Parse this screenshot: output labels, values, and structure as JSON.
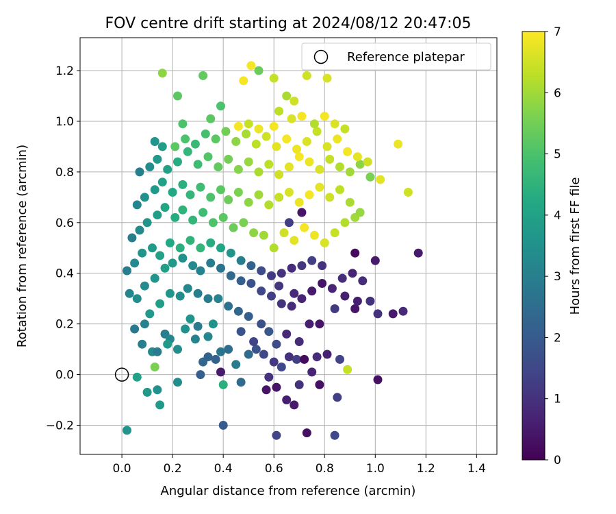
{
  "chart_data": {
    "type": "scatter",
    "title": "FOV centre drift starting at 2024/08/12 20:47:05",
    "xlabel": "Angular distance from reference (arcmin)",
    "ylabel": "Rotation from reference (arcmin)",
    "xlim": [
      -0.165,
      1.48
    ],
    "ylim": [
      -0.315,
      1.33
    ],
    "xticks": [
      "0.0",
      "0.2",
      "0.4",
      "0.6",
      "0.8",
      "1.0",
      "1.2",
      "1.4"
    ],
    "xtick_values": [
      0.0,
      0.2,
      0.4,
      0.6,
      0.8,
      1.0,
      1.2,
      1.4
    ],
    "yticks": [
      "−0.2",
      "0.0",
      "0.2",
      "0.4",
      "0.6",
      "0.8",
      "1.0",
      "1.2"
    ],
    "ytick_values": [
      -0.2,
      0.0,
      0.2,
      0.4,
      0.6,
      0.8,
      1.0,
      1.2
    ],
    "grid": true,
    "legend": {
      "placement": "top-right",
      "entries": [
        "Reference platepar"
      ]
    },
    "reference_point": {
      "x": 0.0,
      "y": 0.0,
      "name": "Reference platepar"
    },
    "colorbar": {
      "label": "Hours from first FF file",
      "range": [
        0,
        7
      ],
      "ticks": [
        "0",
        "1",
        "2",
        "3",
        "4",
        "5",
        "6",
        "7"
      ],
      "tick_values": [
        0,
        1,
        2,
        3,
        4,
        5,
        6,
        7
      ],
      "colormap": [
        "#440154",
        "#482475",
        "#414487",
        "#355f8d",
        "#2a788e",
        "#21918c",
        "#22a884",
        "#44bf70",
        "#7ad151",
        "#bddf26",
        "#fde725"
      ]
    },
    "points": [
      [
        0.02,
        -0.22,
        3.6
      ],
      [
        0.15,
        -0.12,
        3.8
      ],
      [
        0.4,
        -0.2,
        2.0
      ],
      [
        0.61,
        -0.24,
        1.4
      ],
      [
        0.73,
        -0.23,
        0.3
      ],
      [
        0.84,
        -0.24,
        1.5
      ],
      [
        0.1,
        -0.07,
        3.7
      ],
      [
        0.14,
        -0.06,
        3.5
      ],
      [
        0.06,
        -0.01,
        4.0
      ],
      [
        0.13,
        0.03,
        5.6
      ],
      [
        0.22,
        -0.03,
        3.4
      ],
      [
        0.31,
        0.0,
        2.1
      ],
      [
        0.39,
        0.01,
        0.5
      ],
      [
        0.4,
        -0.04,
        4.4
      ],
      [
        0.47,
        -0.03,
        2.4
      ],
      [
        0.57,
        -0.06,
        0.4
      ],
      [
        0.58,
        -0.01,
        1.0
      ],
      [
        0.61,
        -0.05,
        0.4
      ],
      [
        0.65,
        -0.1,
        0.6
      ],
      [
        0.68,
        -0.12,
        0.5
      ],
      [
        0.7,
        -0.04,
        1.0
      ],
      [
        0.75,
        0.01,
        0.7
      ],
      [
        0.78,
        -0.04,
        0.3
      ],
      [
        0.85,
        -0.09,
        1.3
      ],
      [
        0.89,
        0.02,
        6.4
      ],
      [
        1.01,
        -0.02,
        0.3
      ],
      [
        0.32,
        0.05,
        2.3
      ],
      [
        0.34,
        0.07,
        2.2
      ],
      [
        0.37,
        0.06,
        2.2
      ],
      [
        0.45,
        0.04,
        2.9
      ],
      [
        0.5,
        0.08,
        2.4
      ],
      [
        0.53,
        0.1,
        1.8
      ],
      [
        0.56,
        0.08,
        1.5
      ],
      [
        0.6,
        0.05,
        1.2
      ],
      [
        0.63,
        0.03,
        1.5
      ],
      [
        0.66,
        0.07,
        1.0
      ],
      [
        0.69,
        0.06,
        1.3
      ],
      [
        0.72,
        0.06,
        0.2
      ],
      [
        0.77,
        0.07,
        0.9
      ],
      [
        0.81,
        0.08,
        0.6
      ],
      [
        0.86,
        0.06,
        1.4
      ],
      [
        0.65,
        0.16,
        0.8
      ],
      [
        0.7,
        0.13,
        0.9
      ],
      [
        0.74,
        0.2,
        0.6
      ],
      [
        0.78,
        0.2,
        0.4
      ],
      [
        0.84,
        0.26,
        1.2
      ],
      [
        0.92,
        0.26,
        0.4
      ],
      [
        0.98,
        0.29,
        1.0
      ],
      [
        1.01,
        0.24,
        1.0
      ],
      [
        1.07,
        0.24,
        0.5
      ],
      [
        1.11,
        0.25,
        0.8
      ],
      [
        1.17,
        0.48,
        0.5
      ],
      [
        1.0,
        0.45,
        0.5
      ],
      [
        0.92,
        0.48,
        0.2
      ],
      [
        0.91,
        0.4,
        0.7
      ],
      [
        0.95,
        0.37,
        0.9
      ],
      [
        0.93,
        0.29,
        0.6
      ],
      [
        0.88,
        0.31,
        0.6
      ],
      [
        0.05,
        0.18,
        2.8
      ],
      [
        0.08,
        0.12,
        3.0
      ],
      [
        0.09,
        0.2,
        3.1
      ],
      [
        0.12,
        0.09,
        3.3
      ],
      [
        0.14,
        0.09,
        2.9
      ],
      [
        0.17,
        0.16,
        3.0
      ],
      [
        0.19,
        0.14,
        3.2
      ],
      [
        0.22,
        0.1,
        3.4
      ],
      [
        0.25,
        0.18,
        3.5
      ],
      [
        0.27,
        0.22,
        3.6
      ],
      [
        0.29,
        0.14,
        3.1
      ],
      [
        0.3,
        0.19,
        2.9
      ],
      [
        0.34,
        0.15,
        3.2
      ],
      [
        0.36,
        0.2,
        3.5
      ],
      [
        0.18,
        0.12,
        3.8
      ],
      [
        0.11,
        0.24,
        3.7
      ],
      [
        0.15,
        0.28,
        3.9
      ],
      [
        0.19,
        0.32,
        3.6
      ],
      [
        0.23,
        0.31,
        3.4
      ],
      [
        0.26,
        0.34,
        3.2
      ],
      [
        0.3,
        0.32,
        3.0
      ],
      [
        0.34,
        0.3,
        2.9
      ],
      [
        0.38,
        0.3,
        3.1
      ],
      [
        0.42,
        0.27,
        2.6
      ],
      [
        0.46,
        0.25,
        2.3
      ],
      [
        0.5,
        0.23,
        2.1
      ],
      [
        0.55,
        0.2,
        1.7
      ],
      [
        0.58,
        0.17,
        1.9
      ],
      [
        0.61,
        0.12,
        1.6
      ],
      [
        0.47,
        0.17,
        1.8
      ],
      [
        0.52,
        0.13,
        1.4
      ],
      [
        0.42,
        0.1,
        2.5
      ],
      [
        0.39,
        0.09,
        2.7
      ],
      [
        0.03,
        0.32,
        3.2
      ],
      [
        0.06,
        0.3,
        3.4
      ],
      [
        0.09,
        0.35,
        3.3
      ],
      [
        0.13,
        0.38,
        3.6
      ],
      [
        0.17,
        0.42,
        3.9
      ],
      [
        0.2,
        0.44,
        3.7
      ],
      [
        0.24,
        0.46,
        3.5
      ],
      [
        0.28,
        0.43,
        3.3
      ],
      [
        0.31,
        0.41,
        3.1
      ],
      [
        0.35,
        0.44,
        2.9
      ],
      [
        0.39,
        0.42,
        2.7
      ],
      [
        0.43,
        0.39,
        2.4
      ],
      [
        0.47,
        0.37,
        2.1
      ],
      [
        0.51,
        0.36,
        1.8
      ],
      [
        0.55,
        0.33,
        1.5
      ],
      [
        0.59,
        0.31,
        1.3
      ],
      [
        0.63,
        0.28,
        1.0
      ],
      [
        0.67,
        0.27,
        0.9
      ],
      [
        0.71,
        0.3,
        0.7
      ],
      [
        0.75,
        0.33,
        0.5
      ],
      [
        0.79,
        0.36,
        0.4
      ],
      [
        0.83,
        0.34,
        0.7
      ],
      [
        0.87,
        0.38,
        0.9
      ],
      [
        0.02,
        0.41,
        3.0
      ],
      [
        0.05,
        0.44,
        3.3
      ],
      [
        0.08,
        0.48,
        3.6
      ],
      [
        0.12,
        0.5,
        3.8
      ],
      [
        0.15,
        0.47,
        4.0
      ],
      [
        0.19,
        0.52,
        4.2
      ],
      [
        0.23,
        0.5,
        4.4
      ],
      [
        0.27,
        0.53,
        4.5
      ],
      [
        0.31,
        0.5,
        4.6
      ],
      [
        0.35,
        0.52,
        4.3
      ],
      [
        0.39,
        0.5,
        4.1
      ],
      [
        0.43,
        0.48,
        3.6
      ],
      [
        0.47,
        0.45,
        3.0
      ],
      [
        0.51,
        0.43,
        2.2
      ],
      [
        0.55,
        0.41,
        1.6
      ],
      [
        0.59,
        0.39,
        1.2
      ],
      [
        0.63,
        0.4,
        1.0
      ],
      [
        0.67,
        0.42,
        0.9
      ],
      [
        0.71,
        0.43,
        1.1
      ],
      [
        0.75,
        0.45,
        1.3
      ],
      [
        0.79,
        0.43,
        1.0
      ],
      [
        0.68,
        0.32,
        0.8
      ],
      [
        0.62,
        0.35,
        1.1
      ],
      [
        0.04,
        0.54,
        3.0
      ],
      [
        0.07,
        0.57,
        3.3
      ],
      [
        0.1,
        0.6,
        3.6
      ],
      [
        0.14,
        0.63,
        3.9
      ],
      [
        0.17,
        0.66,
        4.1
      ],
      [
        0.21,
        0.62,
        4.3
      ],
      [
        0.24,
        0.65,
        4.5
      ],
      [
        0.28,
        0.61,
        4.6
      ],
      [
        0.32,
        0.64,
        4.8
      ],
      [
        0.36,
        0.6,
        5.0
      ],
      [
        0.4,
        0.62,
        5.2
      ],
      [
        0.44,
        0.58,
        5.4
      ],
      [
        0.48,
        0.6,
        5.6
      ],
      [
        0.52,
        0.56,
        5.8
      ],
      [
        0.56,
        0.55,
        6.0
      ],
      [
        0.6,
        0.5,
        6.2
      ],
      [
        0.64,
        0.56,
        6.5
      ],
      [
        0.68,
        0.53,
        6.7
      ],
      [
        0.72,
        0.58,
        6.9
      ],
      [
        0.76,
        0.55,
        6.8
      ],
      [
        0.8,
        0.52,
        6.6
      ],
      [
        0.84,
        0.56,
        6.4
      ],
      [
        0.88,
        0.6,
        6.2
      ],
      [
        0.92,
        0.62,
        6.0
      ],
      [
        0.66,
        0.6,
        1.3
      ],
      [
        0.71,
        0.64,
        0.4
      ],
      [
        0.06,
        0.67,
        3.2
      ],
      [
        0.09,
        0.7,
        3.5
      ],
      [
        0.13,
        0.73,
        3.8
      ],
      [
        0.16,
        0.76,
        4.0
      ],
      [
        0.2,
        0.72,
        4.2
      ],
      [
        0.24,
        0.75,
        4.4
      ],
      [
        0.27,
        0.71,
        4.6
      ],
      [
        0.31,
        0.74,
        4.8
      ],
      [
        0.35,
        0.7,
        5.0
      ],
      [
        0.39,
        0.73,
        5.2
      ],
      [
        0.42,
        0.69,
        5.4
      ],
      [
        0.46,
        0.72,
        5.6
      ],
      [
        0.5,
        0.68,
        5.8
      ],
      [
        0.54,
        0.71,
        6.0
      ],
      [
        0.58,
        0.67,
        6.2
      ],
      [
        0.62,
        0.7,
        6.4
      ],
      [
        0.66,
        0.72,
        6.6
      ],
      [
        0.7,
        0.68,
        6.8
      ],
      [
        0.74,
        0.71,
        6.9
      ],
      [
        0.78,
        0.74,
        6.7
      ],
      [
        0.82,
        0.7,
        6.5
      ],
      [
        0.86,
        0.73,
        6.3
      ],
      [
        0.9,
        0.68,
        6.1
      ],
      [
        0.94,
        0.64,
        5.9
      ],
      [
        0.07,
        0.8,
        3.0
      ],
      [
        0.11,
        0.82,
        3.4
      ],
      [
        0.14,
        0.85,
        3.7
      ],
      [
        0.18,
        0.81,
        4.0
      ],
      [
        0.22,
        0.84,
        4.3
      ],
      [
        0.26,
        0.88,
        4.6
      ],
      [
        0.3,
        0.83,
        4.8
      ],
      [
        0.34,
        0.86,
        5.1
      ],
      [
        0.38,
        0.82,
        5.3
      ],
      [
        0.42,
        0.85,
        5.5
      ],
      [
        0.46,
        0.81,
        5.7
      ],
      [
        0.5,
        0.84,
        5.9
      ],
      [
        0.54,
        0.8,
        6.1
      ],
      [
        0.58,
        0.83,
        6.3
      ],
      [
        0.62,
        0.79,
        6.5
      ],
      [
        0.66,
        0.82,
        6.7
      ],
      [
        0.7,
        0.86,
        6.9
      ],
      [
        0.74,
        0.84,
        6.8
      ],
      [
        0.78,
        0.81,
        6.6
      ],
      [
        0.82,
        0.85,
        6.4
      ],
      [
        0.86,
        0.82,
        6.2
      ],
      [
        0.9,
        0.8,
        6.0
      ],
      [
        0.94,
        0.83,
        5.8
      ],
      [
        0.98,
        0.78,
        5.6
      ],
      [
        0.13,
        0.92,
        3.6
      ],
      [
        0.16,
        0.9,
        3.9
      ],
      [
        0.21,
        0.9,
        5.2
      ],
      [
        0.25,
        0.93,
        5.0
      ],
      [
        0.29,
        0.91,
        4.7
      ],
      [
        0.33,
        0.95,
        4.9
      ],
      [
        0.37,
        0.93,
        5.2
      ],
      [
        0.41,
        0.96,
        5.5
      ],
      [
        0.45,
        0.92,
        5.8
      ],
      [
        0.49,
        0.95,
        6.1
      ],
      [
        0.53,
        0.91,
        6.3
      ],
      [
        0.57,
        0.94,
        6.5
      ],
      [
        0.61,
        0.9,
        6.7
      ],
      [
        0.65,
        0.93,
        6.9
      ],
      [
        0.69,
        0.89,
        6.8
      ],
      [
        0.73,
        0.92,
        6.6
      ],
      [
        0.77,
        0.96,
        6.4
      ],
      [
        0.81,
        0.9,
        6.6
      ],
      [
        0.85,
        0.93,
        6.8
      ],
      [
        0.89,
        0.88,
        6.9
      ],
      [
        0.93,
        0.86,
        6.7
      ],
      [
        0.97,
        0.84,
        6.5
      ],
      [
        1.02,
        0.77,
        6.7
      ],
      [
        1.09,
        0.91,
        6.8
      ],
      [
        1.13,
        0.72,
        6.5
      ],
      [
        0.24,
        0.99,
        5.0
      ],
      [
        0.35,
        1.01,
        5.2
      ],
      [
        0.39,
        1.06,
        5.0
      ],
      [
        0.46,
        0.98,
        6.9
      ],
      [
        0.5,
        0.99,
        6.4
      ],
      [
        0.54,
        0.97,
        6.8
      ],
      [
        0.6,
        0.98,
        6.9
      ],
      [
        0.62,
        1.04,
        6.3
      ],
      [
        0.67,
        1.01,
        6.6
      ],
      [
        0.71,
        1.02,
        6.9
      ],
      [
        0.76,
        0.99,
        6.2
      ],
      [
        0.8,
        1.02,
        6.9
      ],
      [
        0.84,
        0.99,
        6.6
      ],
      [
        0.88,
        0.97,
        6.4
      ],
      [
        0.22,
        1.1,
        5.2
      ],
      [
        0.32,
        1.18,
        5.3
      ],
      [
        0.16,
        1.19,
        5.8
      ],
      [
        0.51,
        1.22,
        6.9
      ],
      [
        0.54,
        1.2,
        5.4
      ],
      [
        0.48,
        1.16,
        6.9
      ],
      [
        0.65,
        1.1,
        6.1
      ],
      [
        0.73,
        1.18,
        6.5
      ],
      [
        0.81,
        1.17,
        6.6
      ],
      [
        0.68,
        1.08,
        6.5
      ],
      [
        0.6,
        1.17,
        6.4
      ]
    ]
  }
}
